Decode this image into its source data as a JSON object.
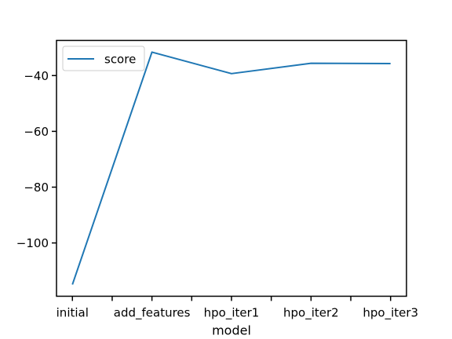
{
  "chart_data": {
    "type": "line",
    "categories": [
      "initial",
      "add_features",
      "hpo_iter1",
      "hpo_iter2",
      "hpo_iter3"
    ],
    "series": [
      {
        "name": "score",
        "values": [
          -114.9,
          -31.6,
          -39.3,
          -35.6,
          -35.7
        ],
        "color": "#1f77b4"
      }
    ],
    "xlabel": "model",
    "ylabel": "",
    "title": "",
    "ylim": [
      -119.1,
      -27.4
    ],
    "yticks": [
      -100,
      -80,
      -60,
      -40
    ],
    "minor_xticks": true,
    "grid": false,
    "legend_position": "upper-left"
  }
}
